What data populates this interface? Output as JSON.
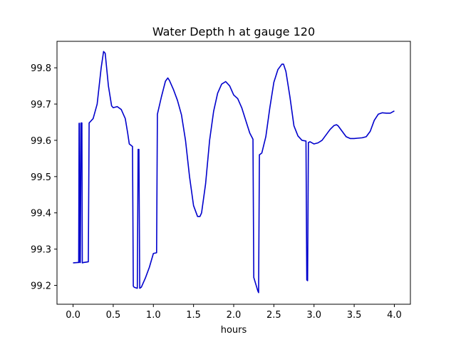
{
  "chart_data": {
    "type": "line",
    "title": "Water Depth h at gauge 120",
    "xlabel": "hours",
    "ylabel": "",
    "xlim": [
      -0.2,
      4.2
    ],
    "ylim": [
      99.148,
      99.873
    ],
    "xticks": [
      0.0,
      0.5,
      1.0,
      1.5,
      2.0,
      2.5,
      3.0,
      3.5,
      4.0
    ],
    "xtick_labels": [
      "0.0",
      "0.5",
      "1.0",
      "1.5",
      "2.0",
      "2.5",
      "3.0",
      "3.5",
      "4.0"
    ],
    "yticks": [
      99.2,
      99.3,
      99.4,
      99.5,
      99.6,
      99.7,
      99.8
    ],
    "ytick_labels": [
      "99.2",
      "99.3",
      "99.4",
      "99.5",
      "99.6",
      "99.7",
      "99.8"
    ],
    "grid": false,
    "legend": "none",
    "series": [
      {
        "color": "#0000cc",
        "x": [
          0.0,
          0.06,
          0.07,
          0.075,
          0.08,
          0.085,
          0.09,
          0.1,
          0.11,
          0.115,
          0.13,
          0.19,
          0.2,
          0.25,
          0.3,
          0.35,
          0.38,
          0.4,
          0.44,
          0.48,
          0.5,
          0.55,
          0.6,
          0.65,
          0.68,
          0.7,
          0.74,
          0.75,
          0.76,
          0.8,
          0.81,
          0.82,
          0.83,
          0.85,
          0.9,
          0.95,
          1.0,
          1.04,
          1.05,
          1.1,
          1.15,
          1.18,
          1.2,
          1.25,
          1.3,
          1.35,
          1.4,
          1.45,
          1.5,
          1.55,
          1.58,
          1.6,
          1.65,
          1.7,
          1.75,
          1.8,
          1.85,
          1.9,
          1.95,
          2.0,
          2.05,
          2.1,
          2.15,
          2.2,
          2.24,
          2.25,
          2.3,
          2.31,
          2.32,
          2.35,
          2.4,
          2.45,
          2.5,
          2.55,
          2.6,
          2.62,
          2.65,
          2.7,
          2.75,
          2.8,
          2.85,
          2.9,
          2.91,
          2.92,
          2.93,
          2.95,
          3.0,
          3.05,
          3.1,
          3.15,
          3.2,
          3.25,
          3.28,
          3.3,
          3.35,
          3.4,
          3.45,
          3.5,
          3.55,
          3.6,
          3.65,
          3.7,
          3.75,
          3.8,
          3.85,
          3.9,
          3.95,
          4.0
        ],
        "y": [
          99.262,
          99.263,
          99.263,
          99.647,
          99.647,
          99.263,
          99.263,
          99.648,
          99.648,
          99.262,
          99.263,
          99.265,
          99.648,
          99.66,
          99.7,
          99.8,
          99.845,
          99.84,
          99.75,
          99.695,
          99.69,
          99.693,
          99.685,
          99.66,
          99.62,
          99.59,
          99.583,
          99.198,
          99.195,
          99.192,
          99.575,
          99.575,
          99.192,
          99.195,
          99.22,
          99.25,
          99.288,
          99.29,
          99.672,
          99.72,
          99.763,
          99.772,
          99.765,
          99.74,
          99.71,
          99.67,
          99.6,
          99.5,
          99.42,
          99.39,
          99.39,
          99.4,
          99.48,
          99.6,
          99.68,
          99.73,
          99.755,
          99.762,
          99.75,
          99.725,
          99.715,
          99.69,
          99.655,
          99.62,
          99.603,
          99.222,
          99.185,
          99.18,
          99.56,
          99.565,
          99.61,
          99.69,
          99.76,
          99.795,
          99.81,
          99.81,
          99.79,
          99.72,
          99.64,
          99.612,
          99.6,
          99.598,
          99.215,
          99.213,
          99.594,
          99.596,
          99.59,
          99.593,
          99.6,
          99.615,
          99.63,
          99.641,
          99.643,
          99.64,
          99.625,
          99.61,
          99.605,
          99.605,
          99.606,
          99.607,
          99.61,
          99.625,
          99.655,
          99.672,
          99.676,
          99.675,
          99.675,
          99.681
        ]
      }
    ]
  }
}
